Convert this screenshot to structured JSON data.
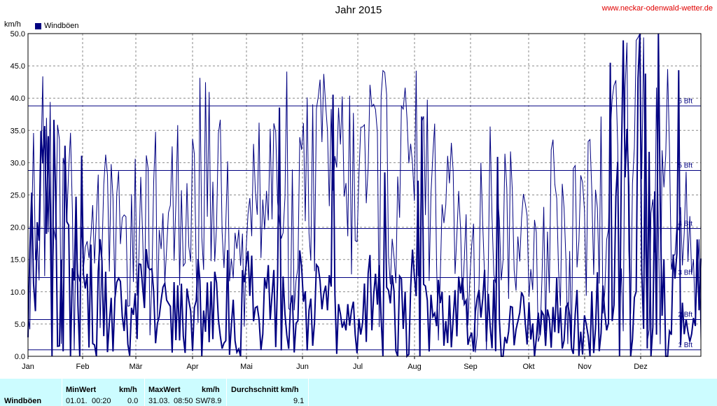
{
  "title": "Jahr 2015",
  "site": "www.neckar-odenwald-wetter.de",
  "legend": {
    "label": "Windböen",
    "color": "#000080"
  },
  "chart_data": {
    "type": "line",
    "title": "Jahr 2015",
    "ylabel": "km/h",
    "ylim": [
      0,
      50
    ],
    "yticks": [
      "0.0",
      "5.0",
      "10.0",
      "15.0",
      "20.0",
      "25.0",
      "30.0",
      "35.0",
      "40.0",
      "45.0",
      "50.0"
    ],
    "months": [
      "Jan",
      "Feb",
      "Mär",
      "Apr",
      "Mai",
      "Jun",
      "Jul",
      "Aug",
      "Sep",
      "Okt",
      "Nov",
      "Dez"
    ],
    "beaufort_lines": [
      {
        "label": "1 Bft",
        "value": 1.0
      },
      {
        "label": "2 Bft",
        "value": 5.7
      },
      {
        "label": "3 Bft",
        "value": 12.2
      },
      {
        "label": "4 Bft",
        "value": 19.8
      },
      {
        "label": "5 Bft",
        "value": 28.8
      },
      {
        "label": "6 Bft",
        "value": 38.8
      }
    ],
    "series": [
      {
        "name": "Windböen",
        "style": "thick",
        "color": "#000080",
        "weekly_avg": [
          14,
          20,
          18,
          12,
          10,
          9,
          8,
          6,
          7,
          8,
          7,
          6,
          7,
          8,
          7,
          8,
          7,
          8,
          6,
          7,
          6,
          8,
          7,
          6,
          7,
          7,
          8,
          7,
          6,
          8,
          7,
          6,
          5,
          6,
          5,
          7,
          6,
          4,
          5,
          5,
          6,
          5,
          5,
          5,
          7,
          16,
          22,
          30,
          18,
          12,
          8,
          9
        ]
      },
      {
        "name": "",
        "style": "thin",
        "color": "#000080",
        "weekly_avg": [
          26,
          30,
          28,
          24,
          22,
          20,
          20,
          18,
          20,
          22,
          20,
          24,
          26,
          28,
          26,
          24,
          24,
          26,
          24,
          26,
          28,
          26,
          28,
          30,
          28,
          26,
          30,
          28,
          26,
          30,
          28,
          24,
          22,
          20,
          22,
          24,
          22,
          20,
          18,
          20,
          22,
          18,
          20,
          22,
          24,
          28,
          32,
          40,
          34,
          30,
          24,
          22
        ]
      }
    ],
    "grid": true
  },
  "stats": {
    "row_label": "Windböen",
    "min_header": "MinWert",
    "min_unit": "km/h",
    "min_date": "01.01.",
    "min_time": "00:20",
    "min_value": "0.0",
    "max_header": "MaxWert",
    "max_unit": "km/h",
    "max_date": "31.03.",
    "max_time": "08:50",
    "max_dir": "SW",
    "max_value": "78.9",
    "avg_header": "Durchschnitt km/h",
    "avg_value": "9.1"
  }
}
